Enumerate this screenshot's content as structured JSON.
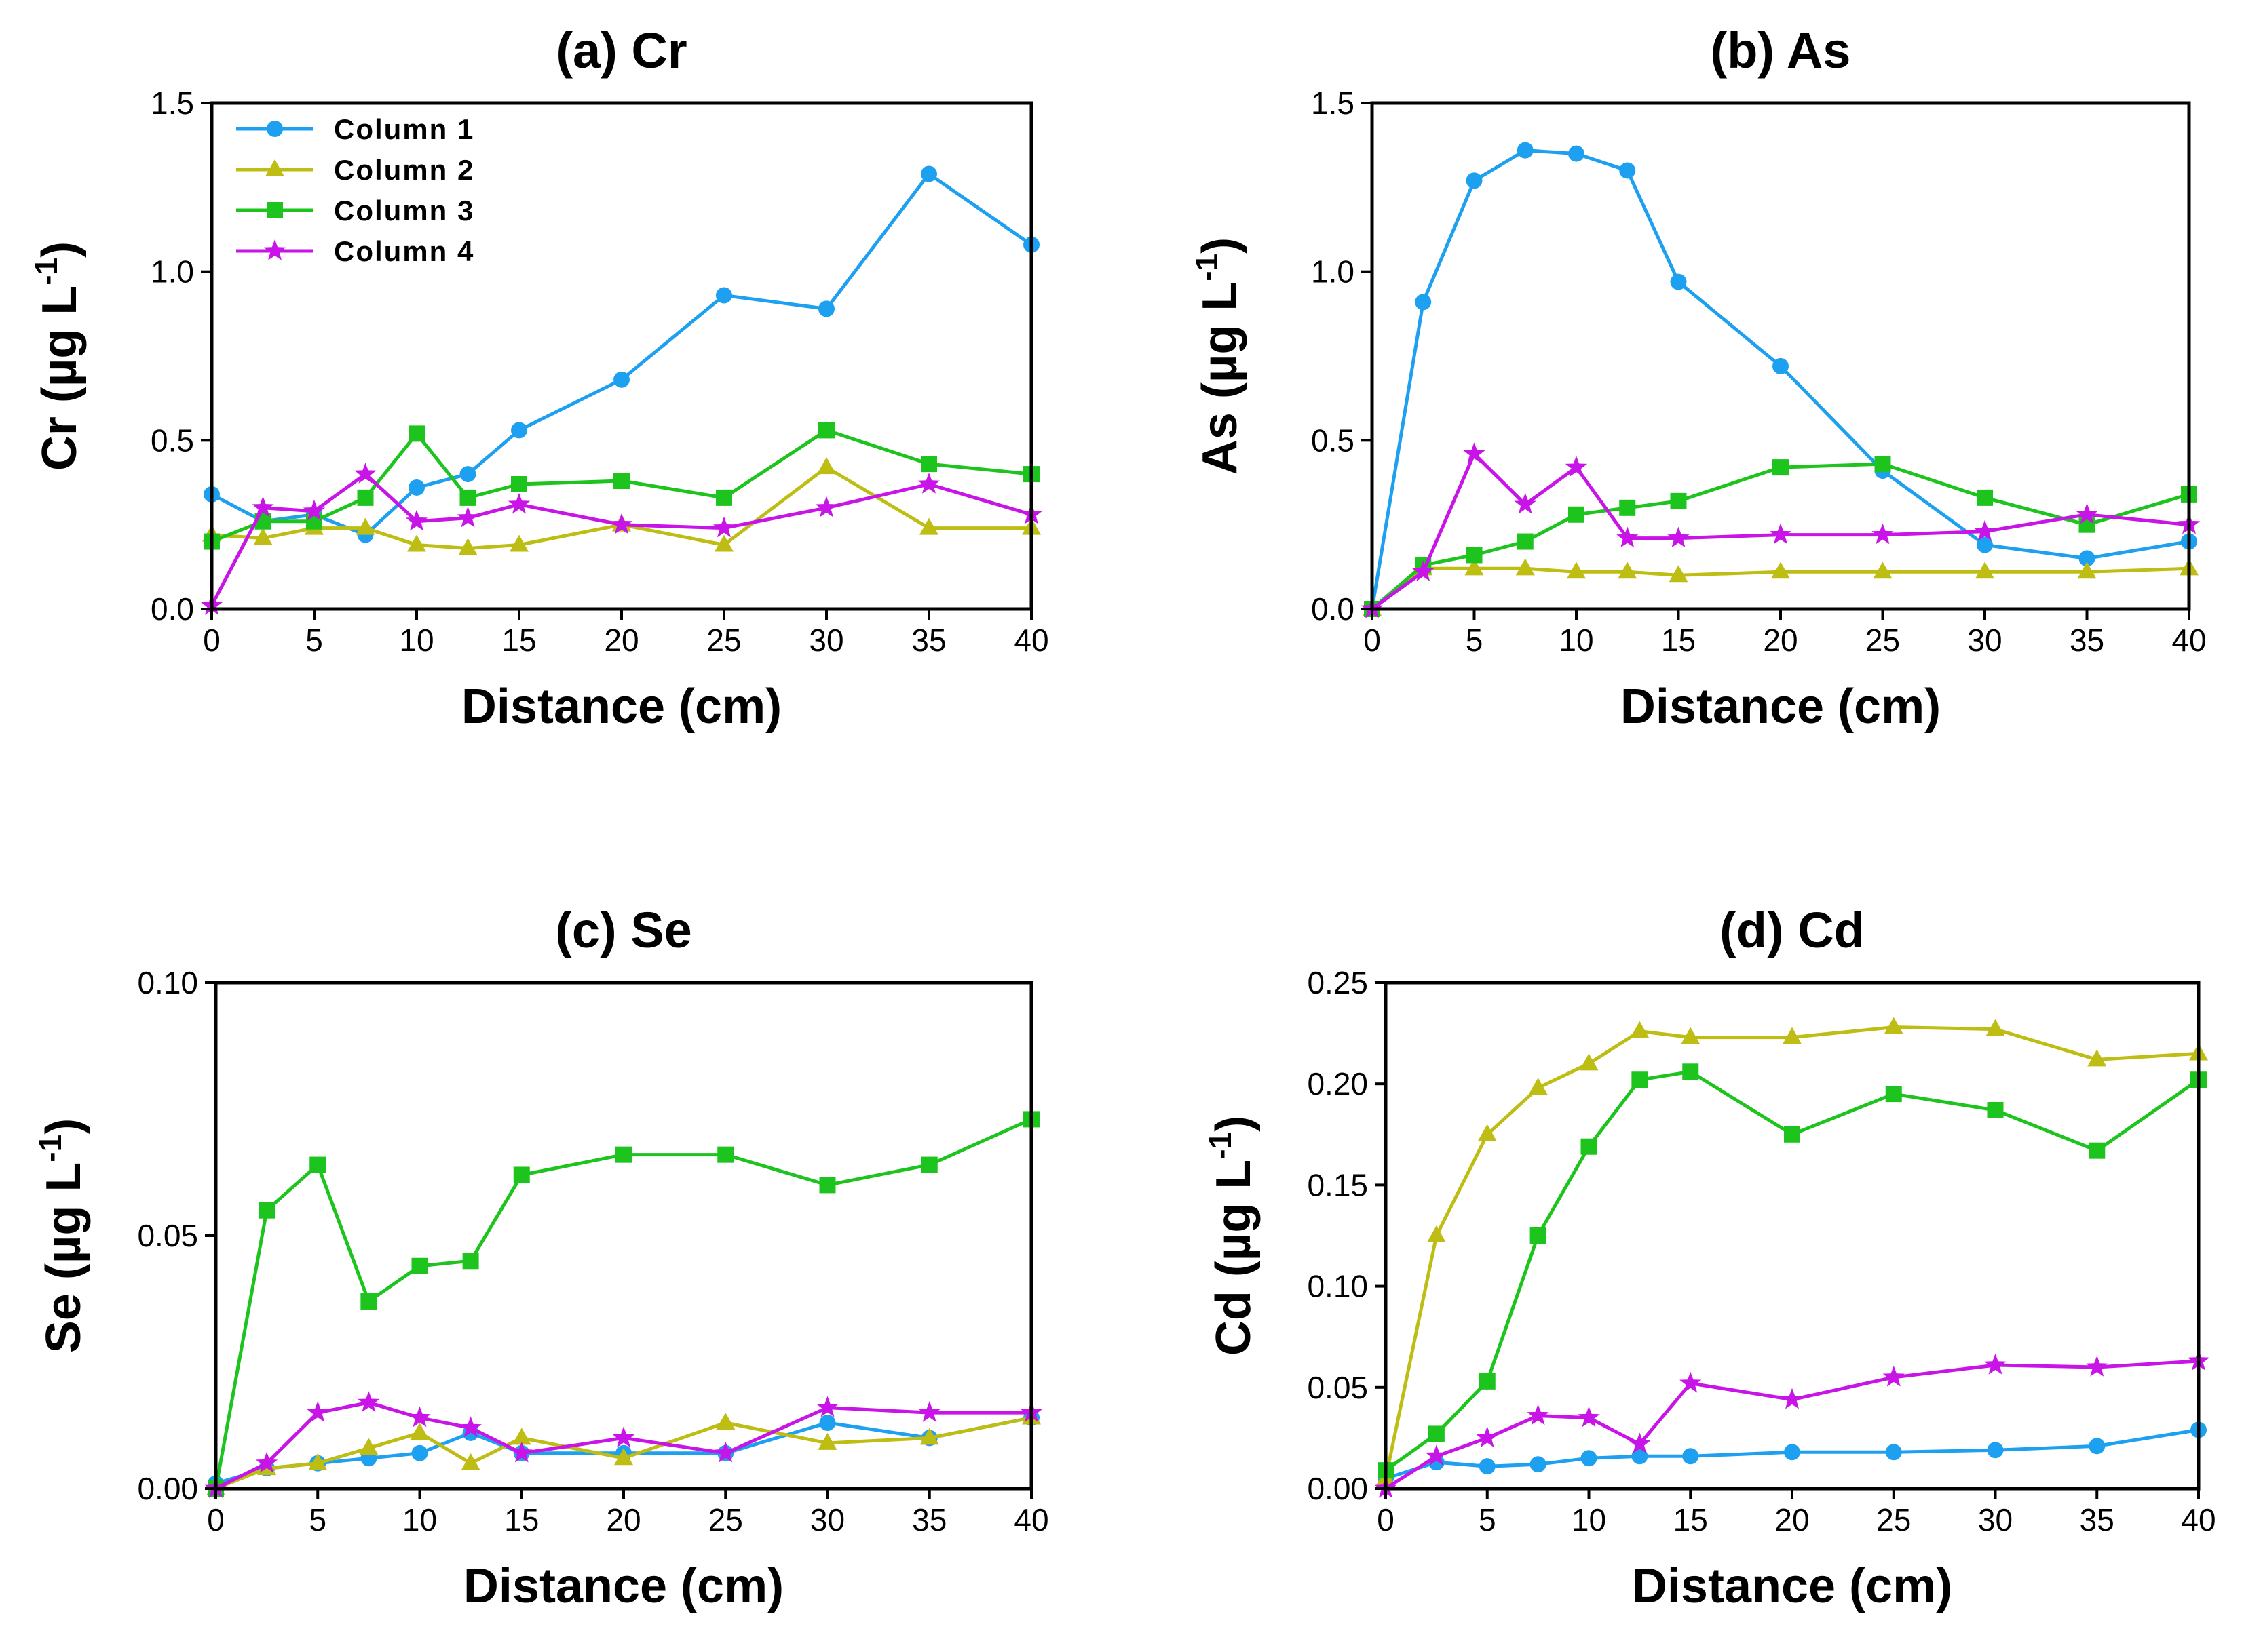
{
  "figure": {
    "legend_position": "top-left of panel (a)"
  },
  "chart_data": [
    {
      "type": "line",
      "title": "(a) Cr",
      "xlabel": "Distance (cm)",
      "ylabel_main": "Cr (µg L",
      "ylabel_sup": "-1",
      "ylabel_close": ")",
      "xlim": [
        0,
        40
      ],
      "ylim": [
        0,
        1.5
      ],
      "xticks": [
        0,
        5,
        10,
        15,
        20,
        25,
        30,
        35,
        40
      ],
      "yticks": [
        0,
        0.5,
        1.0,
        1.5
      ],
      "ytick_labels": [
        "0.0",
        "0.5",
        "1.0",
        "1.5"
      ],
      "show_legend": true,
      "series": [
        {
          "name": "Column 1",
          "color": "#1ea0f0",
          "marker": "circle",
          "x": [
            0,
            2.5,
            5,
            7.5,
            10,
            12.5,
            15,
            20,
            25,
            30,
            35,
            40
          ],
          "y": [
            0.34,
            0.26,
            0.28,
            0.22,
            0.36,
            0.4,
            0.53,
            0.68,
            0.93,
            0.89,
            1.29,
            1.08
          ]
        },
        {
          "name": "Column 2",
          "color": "#bdbd14",
          "marker": "triangle",
          "x": [
            0,
            2.5,
            5,
            7.5,
            10,
            12.5,
            15,
            20,
            25,
            30,
            35,
            40
          ],
          "y": [
            0.22,
            0.21,
            0.24,
            0.24,
            0.19,
            0.18,
            0.19,
            0.25,
            0.19,
            0.42,
            0.24,
            0.24
          ]
        },
        {
          "name": "Column 3",
          "color": "#1ec41e",
          "marker": "square",
          "x": [
            0,
            2.5,
            5,
            7.5,
            10,
            12.5,
            15,
            20,
            25,
            30,
            35,
            40
          ],
          "y": [
            0.2,
            0.26,
            0.26,
            0.33,
            0.52,
            0.33,
            0.37,
            0.38,
            0.33,
            0.53,
            0.43,
            0.4
          ]
        },
        {
          "name": "Column 4",
          "color": "#c814e6",
          "marker": "star",
          "x": [
            0,
            2.5,
            5,
            7.5,
            10,
            12.5,
            15,
            20,
            25,
            30,
            35,
            40
          ],
          "y": [
            0.01,
            0.3,
            0.29,
            0.4,
            0.26,
            0.27,
            0.31,
            0.25,
            0.24,
            0.3,
            0.37,
            0.28
          ]
        }
      ]
    },
    {
      "type": "line",
      "title": "(b) As",
      "xlabel": "Distance (cm)",
      "ylabel_main": "As (µg L",
      "ylabel_sup": "-1",
      "ylabel_close": ")",
      "xlim": [
        0,
        40
      ],
      "ylim": [
        0,
        1.5
      ],
      "xticks": [
        0,
        5,
        10,
        15,
        20,
        25,
        30,
        35,
        40
      ],
      "yticks": [
        0,
        0.5,
        1.0,
        1.5
      ],
      "ytick_labels": [
        "0.0",
        "0.5",
        "1.0",
        "1.5"
      ],
      "show_legend": false,
      "series": [
        {
          "name": "Column 1",
          "color": "#1ea0f0",
          "marker": "circle",
          "x": [
            0,
            2.5,
            5,
            7.5,
            10,
            12.5,
            15,
            20,
            25,
            30,
            35,
            40
          ],
          "y": [
            0.0,
            0.91,
            1.27,
            1.36,
            1.35,
            1.3,
            0.97,
            0.72,
            0.41,
            0.19,
            0.15,
            0.2
          ]
        },
        {
          "name": "Column 2",
          "color": "#bdbd14",
          "marker": "triangle",
          "x": [
            0,
            2.5,
            5,
            7.5,
            10,
            12.5,
            15,
            20,
            25,
            30,
            35,
            40
          ],
          "y": [
            0.0,
            0.12,
            0.12,
            0.12,
            0.11,
            0.11,
            0.1,
            0.11,
            0.11,
            0.11,
            0.11,
            0.12
          ]
        },
        {
          "name": "Column 3",
          "color": "#1ec41e",
          "marker": "square",
          "x": [
            0,
            2.5,
            5,
            7.5,
            10,
            12.5,
            15,
            20,
            25,
            30,
            35,
            40
          ],
          "y": [
            0.0,
            0.13,
            0.16,
            0.2,
            0.28,
            0.3,
            0.32,
            0.42,
            0.43,
            0.33,
            0.25,
            0.34
          ]
        },
        {
          "name": "Column 4",
          "color": "#c814e6",
          "marker": "star",
          "x": [
            0,
            2.5,
            5,
            7.5,
            10,
            12.5,
            15,
            20,
            25,
            30,
            35,
            40
          ],
          "y": [
            0.0,
            0.11,
            0.46,
            0.31,
            0.42,
            0.21,
            0.21,
            0.22,
            0.22,
            0.23,
            0.28,
            0.25
          ]
        }
      ]
    },
    {
      "type": "line",
      "title": "(c) Se",
      "xlabel": "Distance (cm)",
      "ylabel_main": "Se (µg L",
      "ylabel_sup": "-1",
      "ylabel_close": ")",
      "xlim": [
        0,
        40
      ],
      "ylim": [
        0,
        0.1
      ],
      "xticks": [
        0,
        5,
        10,
        15,
        20,
        25,
        30,
        35,
        40
      ],
      "yticks": [
        0,
        0.05,
        0.1
      ],
      "ytick_labels": [
        "0.00",
        "0.05",
        "0.10"
      ],
      "show_legend": false,
      "series": [
        {
          "name": "Column 1",
          "color": "#1ea0f0",
          "marker": "circle",
          "x": [
            0,
            2.5,
            5,
            7.5,
            10,
            12.5,
            15,
            20,
            25,
            30,
            35,
            40
          ],
          "y": [
            0.001,
            0.004,
            0.005,
            0.006,
            0.007,
            0.011,
            0.007,
            0.007,
            0.007,
            0.013,
            0.01,
            0.014
          ]
        },
        {
          "name": "Column 2",
          "color": "#bdbd14",
          "marker": "triangle",
          "x": [
            0,
            2.5,
            5,
            7.5,
            10,
            12.5,
            15,
            20,
            25,
            30,
            35,
            40
          ],
          "y": [
            0.0,
            0.004,
            0.005,
            0.008,
            0.011,
            0.005,
            0.01,
            0.006,
            0.013,
            0.009,
            0.01,
            0.014
          ]
        },
        {
          "name": "Column 3",
          "color": "#1ec41e",
          "marker": "square",
          "x": [
            0,
            2.5,
            5,
            7.5,
            10,
            12.5,
            15,
            20,
            25,
            30,
            35,
            40
          ],
          "y": [
            0.0,
            0.055,
            0.064,
            0.037,
            0.044,
            0.045,
            0.062,
            0.066,
            0.066,
            0.06,
            0.064,
            0.073
          ]
        },
        {
          "name": "Column 4",
          "color": "#c814e6",
          "marker": "star",
          "x": [
            0,
            2.5,
            5,
            7.5,
            10,
            12.5,
            15,
            20,
            25,
            30,
            35,
            40
          ],
          "y": [
            0.0,
            0.005,
            0.015,
            0.017,
            0.014,
            0.012,
            0.007,
            0.01,
            0.007,
            0.016,
            0.015,
            0.015
          ]
        }
      ]
    },
    {
      "type": "line",
      "title": "(d) Cd",
      "xlabel": "Distance (cm)",
      "ylabel_main": "Cd (µg L",
      "ylabel_sup": "-1",
      "ylabel_close": ")",
      "xlim": [
        0,
        40
      ],
      "ylim": [
        0,
        0.25
      ],
      "xticks": [
        0,
        5,
        10,
        15,
        20,
        25,
        30,
        35,
        40
      ],
      "yticks": [
        0,
        0.05,
        0.1,
        0.15,
        0.2,
        0.25
      ],
      "ytick_labels": [
        "0.00",
        "0.05",
        "0.10",
        "0.15",
        "0.20",
        "0.25"
      ],
      "show_legend": false,
      "series": [
        {
          "name": "Column 1",
          "color": "#1ea0f0",
          "marker": "circle",
          "x": [
            0,
            2.5,
            5,
            7.5,
            10,
            12.5,
            15,
            20,
            25,
            30,
            35,
            40
          ],
          "y": [
            0.005,
            0.013,
            0.011,
            0.012,
            0.015,
            0.016,
            0.016,
            0.018,
            0.018,
            0.019,
            0.021,
            0.029
          ]
        },
        {
          "name": "Column 2",
          "color": "#bdbd14",
          "marker": "triangle",
          "x": [
            0,
            2.5,
            5,
            7.5,
            10,
            12.5,
            15,
            20,
            25,
            30,
            35,
            40
          ],
          "y": [
            0.005,
            0.125,
            0.175,
            0.198,
            0.21,
            0.226,
            0.223,
            0.223,
            0.228,
            0.227,
            0.212,
            0.215
          ]
        },
        {
          "name": "Column 3",
          "color": "#1ec41e",
          "marker": "square",
          "x": [
            0,
            2.5,
            5,
            7.5,
            10,
            12.5,
            15,
            20,
            25,
            30,
            35,
            40
          ],
          "y": [
            0.009,
            0.027,
            0.053,
            0.125,
            0.169,
            0.202,
            0.206,
            0.175,
            0.195,
            0.187,
            0.167,
            0.202
          ]
        },
        {
          "name": "Column 4",
          "color": "#c814e6",
          "marker": "star",
          "x": [
            0,
            2.5,
            5,
            7.5,
            10,
            12.5,
            15,
            20,
            25,
            30,
            35,
            40
          ],
          "y": [
            0.0,
            0.016,
            0.025,
            0.036,
            0.035,
            0.022,
            0.052,
            0.044,
            0.055,
            0.061,
            0.06,
            0.063
          ]
        }
      ]
    }
  ]
}
